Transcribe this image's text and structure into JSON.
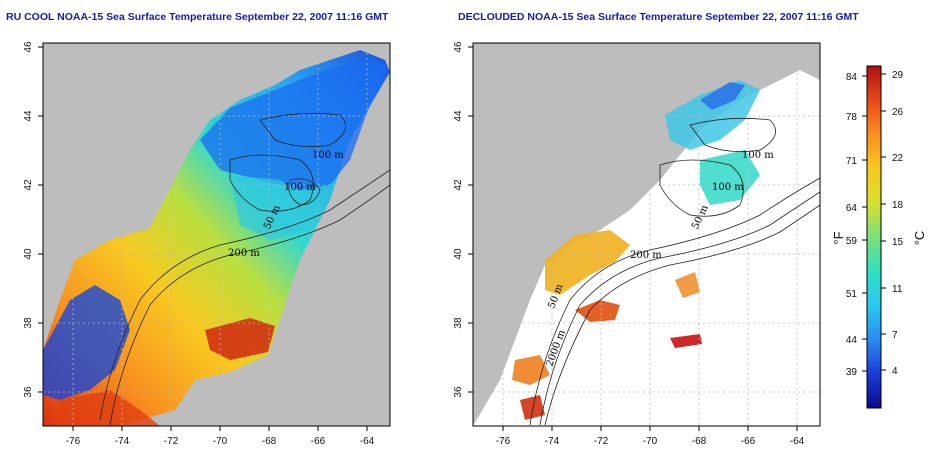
{
  "panels": [
    {
      "title": "RU COOL NOAA-15 Sea Surface Temperature September 22, 2007 11:16 GMT",
      "contour_labels": [
        "100 m",
        "100 m",
        "200 m",
        "50 m"
      ]
    },
    {
      "title": "DECLOUDED NOAA-15 Sea Surface Temperature September 22, 2007 11:16 GMT",
      "contour_labels": [
        "100 m",
        "100 m",
        "200 m",
        "50 m",
        "50 m",
        "2000 m"
      ]
    }
  ],
  "axes": {
    "lon_ticks": [
      "-76",
      "-74",
      "-72",
      "-70",
      "-68",
      "-66",
      "-64"
    ],
    "lat_ticks": [
      "36",
      "38",
      "40",
      "42",
      "44",
      "46"
    ],
    "lon_range": [
      -77,
      -63
    ],
    "lat_range": [
      35,
      46
    ]
  },
  "colorbar": {
    "fahrenheit_ticks": [
      "84",
      "78",
      "71",
      "64",
      "59",
      "51",
      "44",
      "39"
    ],
    "celsius_ticks": [
      "29",
      "26",
      "22",
      "18",
      "15",
      "11",
      "7",
      "4"
    ],
    "fahrenheit_unit": "°F",
    "celsius_unit": "°C",
    "stops": [
      "#0a0a8c",
      "#1a3cd8",
      "#2a8cf0",
      "#2ac8f0",
      "#30e0c0",
      "#7ae07a",
      "#d8e030",
      "#f8c820",
      "#f89020",
      "#e84818",
      "#b01010"
    ]
  },
  "colors": {
    "land": "#bdbdbd",
    "grid": "#b8b8b8",
    "contour": "#222222"
  }
}
